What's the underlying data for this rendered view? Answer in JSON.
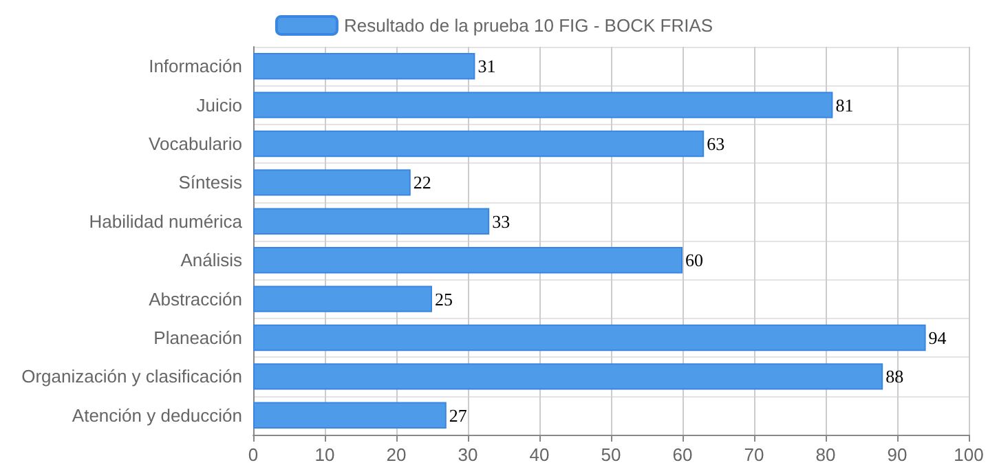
{
  "chart_data": {
    "type": "bar",
    "orientation": "horizontal",
    "categories": [
      "Información",
      "Juicio",
      "Vocabulario",
      "Síntesis",
      "Habilidad numérica",
      "Análisis",
      "Abstracción",
      "Planeación",
      "Organización y clasificación",
      "Atención y deducción"
    ],
    "series": [
      {
        "name": "Resultado de la prueba 10 FIG - BOCK FRIAS",
        "color": "#4e9be9",
        "values": [
          31,
          81,
          63,
          22,
          33,
          60,
          25,
          94,
          88,
          27
        ]
      }
    ],
    "xlim": [
      0,
      100
    ],
    "xticks": [
      0,
      10,
      20,
      30,
      40,
      50,
      60,
      70,
      80,
      90,
      100
    ],
    "data_labels": true,
    "grid": true,
    "legend": "top"
  }
}
